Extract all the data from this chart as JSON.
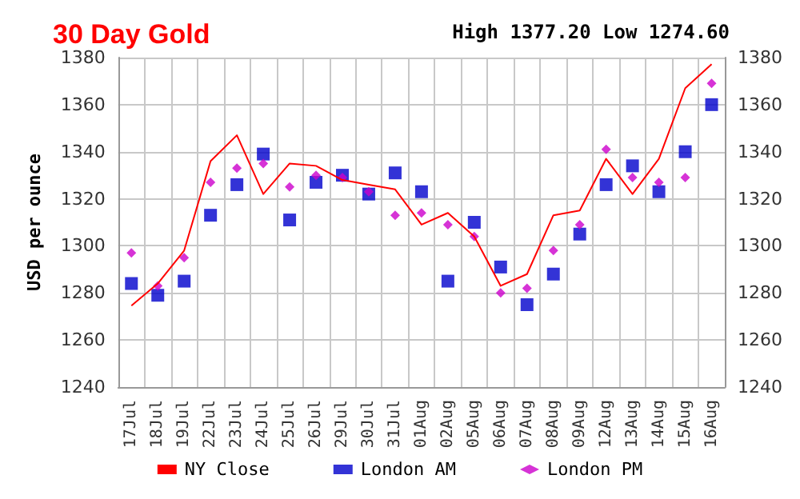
{
  "chart_data": {
    "type": "line",
    "title": "30 Day Gold",
    "annotations": [
      "High 1377.20 Low 1274.60"
    ],
    "ylabel": "USD per ounce",
    "categories": [
      "17Jul",
      "18Jul",
      "19Jul",
      "22Jul",
      "23Jul",
      "24Jul",
      "25Jul",
      "26Jul",
      "29Jul",
      "30Jul",
      "31Jul",
      "01Aug",
      "02Aug",
      "05Aug",
      "06Aug",
      "07Aug",
      "08Aug",
      "09Aug",
      "12Aug",
      "13Aug",
      "14Aug",
      "15Aug",
      "16Aug"
    ],
    "series": [
      {
        "name": "NY Close",
        "marker": "none",
        "color": "#ff0000",
        "values": [
          1274.6,
          1284,
          1298,
          1336,
          1347,
          1322,
          1335,
          1334,
          1328,
          1326,
          1324,
          1309,
          1314,
          1304,
          1283,
          1288,
          1313,
          1315,
          1337,
          1322,
          1337,
          1367,
          1377.2
        ]
      },
      {
        "name": "London AM",
        "type": "scatter",
        "marker": "square",
        "color": "#0000cc",
        "values": [
          1284,
          1279,
          1285,
          1313,
          1326,
          1339,
          1311,
          1327,
          1330,
          1322,
          1331,
          1323,
          1285,
          1310,
          1291,
          1275,
          1288,
          1305,
          1326,
          1334,
          1323,
          1340,
          1360
        ]
      },
      {
        "name": "London PM",
        "type": "scatter",
        "marker": "diamond",
        "color": "#cc00cc",
        "values": [
          1297,
          1283,
          1295,
          1327,
          1333,
          1335,
          1325,
          1330,
          1329,
          1323,
          1313,
          1314,
          1309,
          1304,
          1280,
          1282,
          1298,
          1309,
          1341,
          1329,
          1327,
          1329,
          1369
        ]
      }
    ],
    "ylim": [
      1240,
      1380
    ],
    "yticks": [
      1240,
      1260,
      1280,
      1300,
      1320,
      1340,
      1360,
      1380
    ],
    "y2lim": [
      1240,
      1380
    ],
    "y2ticks": [
      1240,
      1260,
      1280,
      1300,
      1320,
      1340,
      1360,
      1380
    ],
    "grid": true,
    "legend": "bottom"
  }
}
